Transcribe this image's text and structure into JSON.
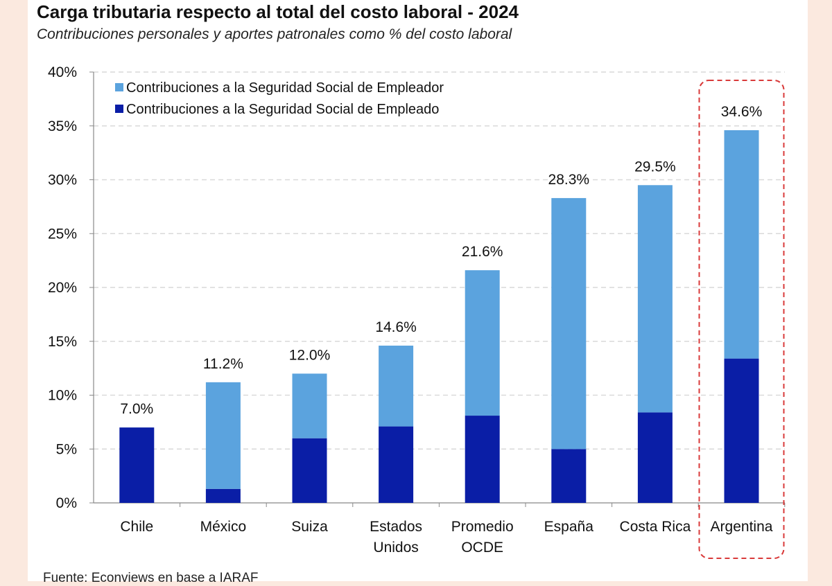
{
  "header": {
    "title": "Carga tributaria respecto al total del costo laboral - 2024",
    "subtitle": "Contribuciones personales y aportes patronales como % del costo laboral"
  },
  "footer": {
    "source": "Fuente: Econviews en base a IARAF"
  },
  "colors": {
    "empleador": "#5ba3de",
    "empleado": "#0a1ea6",
    "highlight": "#d93a3a",
    "grid": "#d9d9d9",
    "page_bg": "#fbe9df"
  },
  "chart_data": {
    "type": "bar",
    "stacked": true,
    "title": "Carga tributaria respecto al total del costo laboral - 2024",
    "subtitle": "Contribuciones personales y aportes patronales como % del costo laboral",
    "xlabel": "",
    "ylabel": "",
    "ylim": [
      0,
      40
    ],
    "yticks": [
      0,
      5,
      10,
      15,
      20,
      25,
      30,
      35,
      40
    ],
    "ytick_labels": [
      "0%",
      "5%",
      "10%",
      "15%",
      "20%",
      "25%",
      "30%",
      "35%",
      "40%"
    ],
    "grid": true,
    "legend_position": "top-left",
    "categories": [
      [
        "Chile"
      ],
      [
        "México"
      ],
      [
        "Suiza"
      ],
      [
        "Estados",
        "Unidos"
      ],
      [
        "Promedio",
        "OCDE"
      ],
      [
        "España"
      ],
      [
        "Costa Rica"
      ],
      [
        "Argentina"
      ]
    ],
    "series": [
      {
        "name": "Contribuciones a la Seguridad Social de Empleado",
        "color": "#0a1ea6",
        "values": [
          7.0,
          1.3,
          6.0,
          7.1,
          8.1,
          5.0,
          8.4,
          13.4
        ]
      },
      {
        "name": "Contribuciones a la Seguridad Social de Empleador",
        "color": "#5ba3de",
        "values": [
          0.0,
          9.9,
          6.0,
          7.5,
          13.5,
          23.3,
          21.1,
          21.2
        ]
      }
    ],
    "legend_order": [
      "Contribuciones a la Seguridad Social de Empleador",
      "Contribuciones a la Seguridad Social de Empleado"
    ],
    "totals": [
      7.0,
      11.2,
      12.0,
      14.6,
      21.6,
      28.3,
      29.5,
      34.6
    ],
    "total_labels": [
      "7.0%",
      "11.2%",
      "12.0%",
      "14.6%",
      "21.6%",
      "28.3%",
      "29.5%",
      "34.6%"
    ],
    "highlighted_category": "Argentina"
  }
}
